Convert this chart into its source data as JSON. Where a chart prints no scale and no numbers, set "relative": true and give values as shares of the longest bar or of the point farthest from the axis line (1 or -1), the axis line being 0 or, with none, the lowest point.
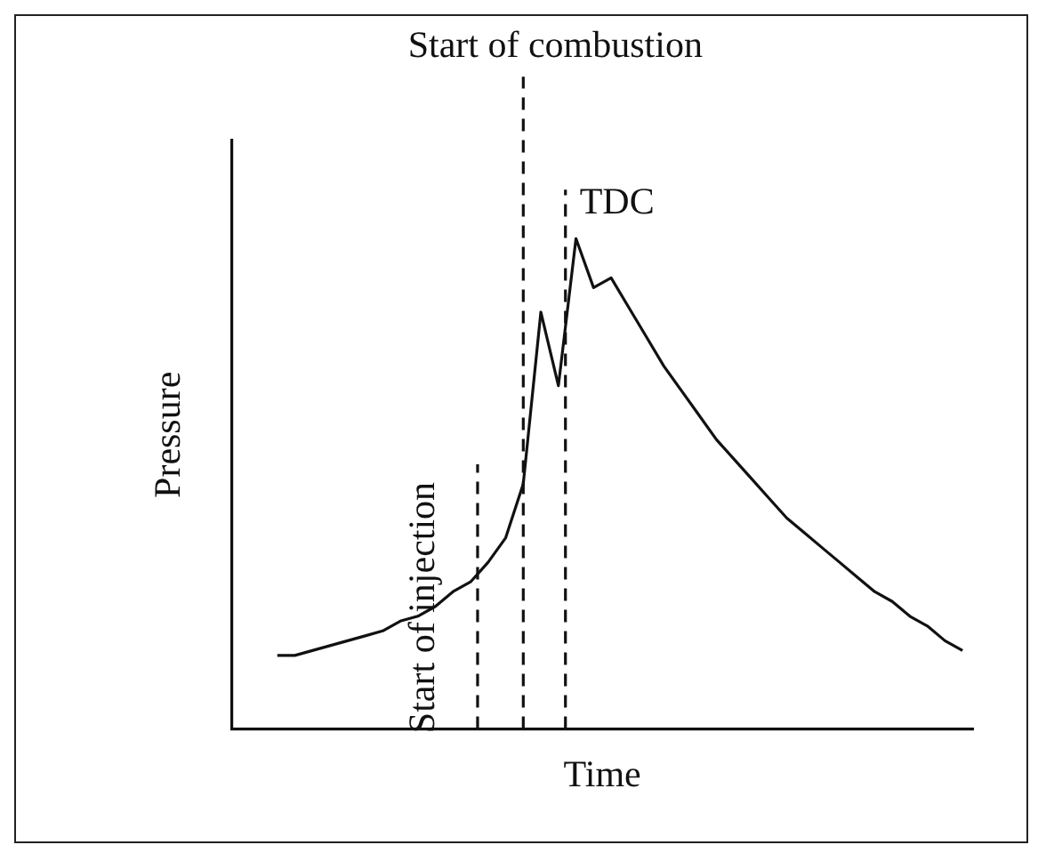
{
  "chart_data": {
    "type": "line",
    "relative": true,
    "xlabel": "Time",
    "ylabel": "Pressure",
    "color": "#111111",
    "marker": "none",
    "line_style": "solid",
    "grid": false,
    "legend": false,
    "categories": [
      null,
      null,
      null,
      null,
      null,
      null,
      null,
      null,
      null,
      null,
      null,
      null,
      null,
      null,
      null,
      null,
      null,
      null,
      null,
      null,
      null,
      null,
      null,
      null,
      null,
      null,
      null,
      null,
      null,
      null,
      null,
      null,
      null,
      null,
      null,
      null,
      null,
      null,
      null,
      null
    ],
    "values": [
      0.15,
      0.15,
      0.16,
      0.17,
      0.18,
      0.19,
      0.2,
      0.22,
      0.23,
      0.25,
      0.28,
      0.3,
      0.34,
      0.39,
      0.5,
      0.85,
      0.7,
      1.0,
      0.9,
      0.92,
      0.86,
      0.8,
      0.74,
      0.69,
      0.64,
      0.59,
      0.55,
      0.51,
      0.47,
      0.43,
      0.4,
      0.37,
      0.34,
      0.31,
      0.28,
      0.26,
      0.23,
      0.21,
      0.18,
      0.16
    ],
    "annotations": [
      "Start of injection",
      "Start of combustion",
      "TDC"
    ]
  }
}
